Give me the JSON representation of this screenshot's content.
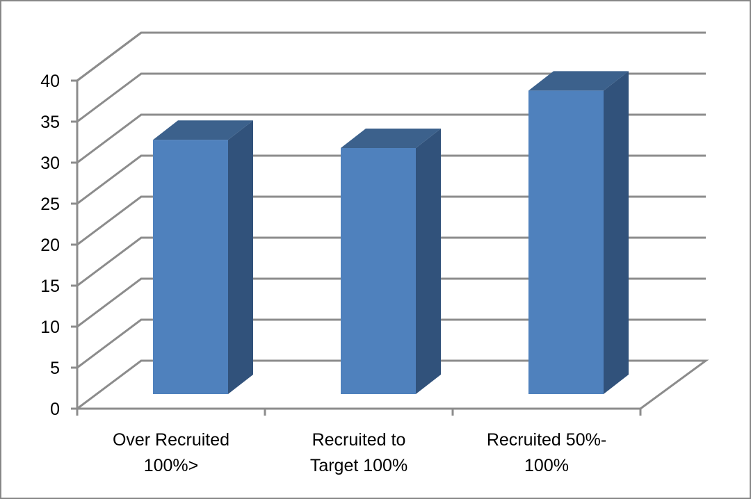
{
  "chart_data": {
    "type": "bar",
    "style": "3d-column",
    "title": "",
    "xlabel": "",
    "ylabel": "",
    "categories": [
      "Over Recruited 100%>",
      "Recruited to Target 100%",
      "Recruited 50%-100%"
    ],
    "category_lines": [
      [
        "Over Recruited",
        "100%>"
      ],
      [
        "Recruited to",
        "Target 100%"
      ],
      [
        "Recruited 50%-",
        "100%"
      ]
    ],
    "values": [
      31,
      30,
      37
    ],
    "ylim": [
      0,
      40
    ],
    "yticks": [
      0,
      5,
      10,
      15,
      20,
      25,
      30,
      35,
      40
    ],
    "grid": true,
    "legend": null,
    "colors": {
      "bar_front": "#4f81bd",
      "bar_top": "#3c618c",
      "bar_side": "#31527b",
      "grid": "#8c8c8c",
      "border": "#878787"
    }
  }
}
